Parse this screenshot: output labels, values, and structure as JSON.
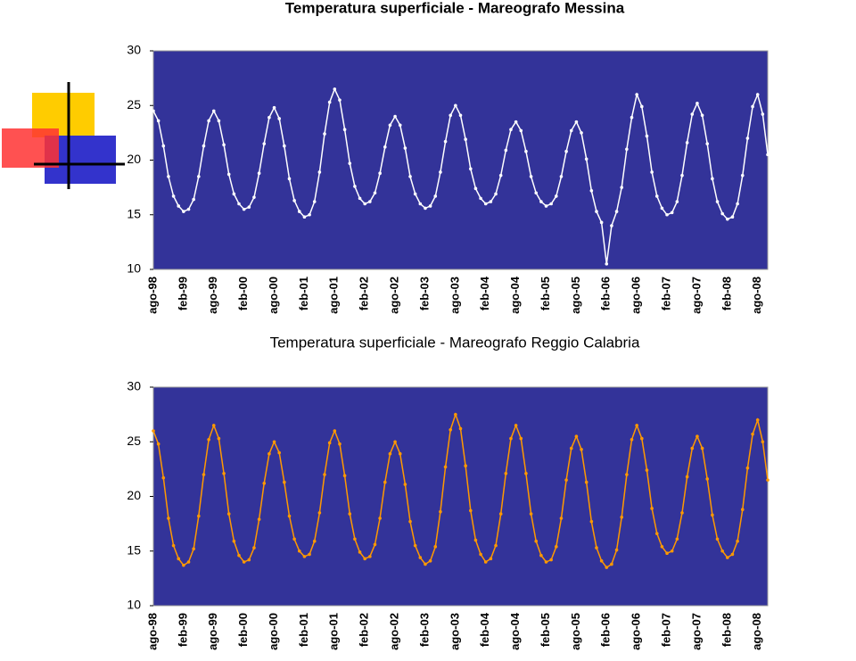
{
  "chart_data": [
    {
      "type": "line",
      "title": "Temperatura superficiale - Mareografo Messina",
      "color": "#ffffff",
      "ylim": [
        10,
        30
      ],
      "yticks": [
        10,
        15,
        20,
        25,
        30
      ],
      "categories": [
        "ago-98",
        null,
        null,
        null,
        null,
        null,
        "feb-99",
        null,
        null,
        null,
        null,
        null,
        "ago-99",
        null,
        null,
        null,
        null,
        null,
        "feb-00",
        null,
        null,
        null,
        null,
        null,
        "ago-00",
        null,
        null,
        null,
        null,
        null,
        "feb-01",
        null,
        null,
        null,
        null,
        null,
        "ago-01",
        null,
        null,
        null,
        null,
        null,
        "feb-02",
        null,
        null,
        null,
        null,
        null,
        "ago-02",
        null,
        null,
        null,
        null,
        null,
        "feb-03",
        null,
        null,
        null,
        null,
        null,
        "ago-03",
        null,
        null,
        null,
        null,
        null,
        "feb-04",
        null,
        null,
        null,
        null,
        null,
        "ago-04",
        null,
        null,
        null,
        null,
        null,
        "feb-05",
        null,
        null,
        null,
        null,
        null,
        "ago-05",
        null,
        null,
        null,
        null,
        null,
        "feb-06",
        null,
        null,
        null,
        null,
        null,
        "ago-06",
        null,
        null,
        null,
        null,
        null,
        "feb-07",
        null,
        null,
        null,
        null,
        null,
        "ago-07",
        null,
        null,
        null,
        null,
        null,
        "feb-08",
        null,
        null,
        null,
        null,
        null,
        "ago-08",
        null,
        null
      ],
      "values": [
        24.5,
        23.6,
        21.3,
        18.5,
        16.7,
        15.8,
        15.3,
        15.5,
        16.4,
        18.5,
        21.3,
        23.6,
        24.5,
        23.6,
        21.4,
        18.7,
        16.9,
        16.0,
        15.5,
        15.7,
        16.6,
        18.8,
        21.5,
        23.9,
        24.8,
        23.8,
        21.3,
        18.3,
        16.3,
        15.3,
        14.8,
        15.0,
        16.2,
        18.9,
        22.4,
        25.3,
        26.5,
        25.5,
        22.8,
        19.7,
        17.6,
        16.5,
        16.0,
        16.2,
        17.0,
        18.8,
        21.2,
        23.2,
        24.0,
        23.2,
        21.1,
        18.5,
        16.9,
        16.0,
        15.6,
        15.8,
        16.7,
        18.9,
        21.7,
        24.1,
        25.0,
        24.1,
        21.9,
        19.2,
        17.4,
        16.5,
        16.0,
        16.2,
        16.9,
        18.6,
        20.9,
        22.8,
        23.5,
        22.7,
        20.8,
        18.5,
        17.0,
        16.2,
        15.8,
        16.0,
        16.7,
        18.5,
        20.8,
        22.7,
        23.5,
        22.5,
        20.1,
        17.2,
        15.3,
        14.3,
        10.5,
        14.0,
        15.3,
        17.5,
        21.0,
        23.9,
        26.0,
        24.9,
        22.2,
        18.9,
        16.7,
        15.6,
        15.0,
        15.2,
        16.2,
        18.6,
        21.6,
        24.2,
        25.2,
        24.1,
        21.5,
        18.3,
        16.2,
        15.1,
        14.6,
        14.8,
        16.0,
        18.6,
        22.0,
        24.9,
        26.0,
        24.2,
        20.5
      ]
    },
    {
      "type": "line",
      "title": "Temperatura superficiale - Mareografo Reggio Calabria",
      "color": "#ff9900",
      "ylim": [
        10,
        30
      ],
      "yticks": [
        10,
        15,
        20,
        25,
        30
      ],
      "categories": [
        "ago-98",
        null,
        null,
        null,
        null,
        null,
        "feb-99",
        null,
        null,
        null,
        null,
        null,
        "ago-99",
        null,
        null,
        null,
        null,
        null,
        "feb-00",
        null,
        null,
        null,
        null,
        null,
        "ago-00",
        null,
        null,
        null,
        null,
        null,
        "feb-01",
        null,
        null,
        null,
        null,
        null,
        "ago-01",
        null,
        null,
        null,
        null,
        null,
        "feb-02",
        null,
        null,
        null,
        null,
        null,
        "ago-02",
        null,
        null,
        null,
        null,
        null,
        "feb-03",
        null,
        null,
        null,
        null,
        null,
        "ago-03",
        null,
        null,
        null,
        null,
        null,
        "feb-04",
        null,
        null,
        null,
        null,
        null,
        "ago-04",
        null,
        null,
        null,
        null,
        null,
        "feb-05",
        null,
        null,
        null,
        null,
        null,
        "ago-05",
        null,
        null,
        null,
        null,
        null,
        "feb-06",
        null,
        null,
        null,
        null,
        null,
        "ago-06",
        null,
        null,
        null,
        null,
        null,
        "feb-07",
        null,
        null,
        null,
        null,
        null,
        "ago-07",
        null,
        null,
        null,
        null,
        null,
        "feb-08",
        null,
        null,
        null,
        null,
        null,
        "ago-08",
        null,
        null
      ],
      "values": [
        26.0,
        24.8,
        21.7,
        18.0,
        15.5,
        14.3,
        13.7,
        14.0,
        15.2,
        18.2,
        22.0,
        25.2,
        26.5,
        25.3,
        22.1,
        18.4,
        15.9,
        14.6,
        14.0,
        14.2,
        15.3,
        17.9,
        21.2,
        23.9,
        25.0,
        24.0,
        21.3,
        18.2,
        16.1,
        15.0,
        14.5,
        14.7,
        15.9,
        18.5,
        22.0,
        24.9,
        26.0,
        24.8,
        21.9,
        18.4,
        16.1,
        14.9,
        14.3,
        14.5,
        15.6,
        18.0,
        21.3,
        23.9,
        25.0,
        23.9,
        21.1,
        17.7,
        15.5,
        14.4,
        13.8,
        14.1,
        15.4,
        18.6,
        22.7,
        26.1,
        27.5,
        26.2,
        22.8,
        18.7,
        16.0,
        14.7,
        14.0,
        14.3,
        15.5,
        18.4,
        22.1,
        25.3,
        26.5,
        25.3,
        22.1,
        18.4,
        15.9,
        14.6,
        14.0,
        14.2,
        15.4,
        18.0,
        21.5,
        24.4,
        25.5,
        24.3,
        21.3,
        17.7,
        15.3,
        14.1,
        13.5,
        13.8,
        15.1,
        18.1,
        22.0,
        25.2,
        26.5,
        25.3,
        22.4,
        18.9,
        16.6,
        15.4,
        14.8,
        15.0,
        16.1,
        18.5,
        21.8,
        24.4,
        25.5,
        24.4,
        21.6,
        18.3,
        16.1,
        15.0,
        14.4,
        14.7,
        15.9,
        18.8,
        22.6,
        25.7,
        27.0,
        25.0,
        21.5
      ]
    }
  ]
}
